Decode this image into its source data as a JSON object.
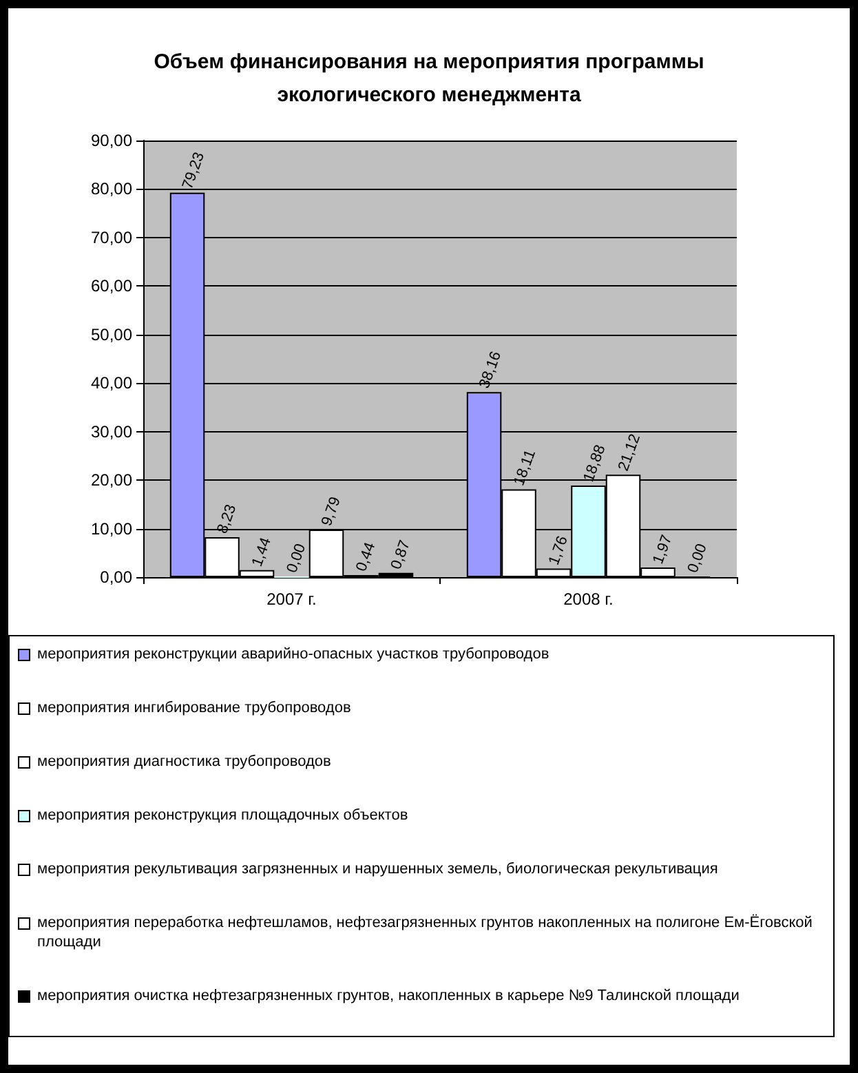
{
  "chart_data": {
    "type": "bar",
    "title": "Объем финансирования на мероприятия программы\nэкологического менеджмента",
    "categories": [
      "2007 г.",
      "2008 г."
    ],
    "series": [
      {
        "name": "мероприятия реконструкции аварийно-опасных участков трубопроводов",
        "color": "#9999ff",
        "values": [
          79.23,
          38.16
        ],
        "value_labels": [
          "79,23",
          "38,16"
        ]
      },
      {
        "name": "мероприятия ингибирование трубопроводов",
        "color": "#ffffff",
        "values": [
          8.23,
          18.11
        ],
        "value_labels": [
          "8,23",
          "18,11"
        ]
      },
      {
        "name": "мероприятия диагностика трубопроводов",
        "color": "#ffffff",
        "values": [
          1.44,
          1.76
        ],
        "value_labels": [
          "1,44",
          "1,76"
        ]
      },
      {
        "name": "мероприятия реконструкция  площадочных объектов",
        "color": "#ccffff",
        "values": [
          0.0,
          18.88
        ],
        "value_labels": [
          "0,00",
          "18,88"
        ]
      },
      {
        "name": "мероприятия рекультивация загрязненных и нарушенных земель, биологическая рекультивация",
        "color": "#ffffff",
        "values": [
          9.79,
          21.12
        ],
        "value_labels": [
          "9,79",
          "21,12"
        ]
      },
      {
        "name": "мероприятия переработка нефтешламов, нефтезагрязненных грунтов накопленных на полигоне Ем-Ёговской площади",
        "color": "#ffffff",
        "values": [
          0.44,
          1.97
        ],
        "value_labels": [
          "0,44",
          "1,97"
        ]
      },
      {
        "name": "мероприятия очистка нефтезагрязненных грунтов, накопленных в карьере №9 Талинской площади",
        "color": "#000000",
        "values": [
          0.87,
          0.0
        ],
        "value_labels": [
          "0,87",
          "0,00"
        ]
      }
    ],
    "ylim": [
      0,
      90
    ],
    "yticks": [
      {
        "value": 0,
        "label": "0,00"
      },
      {
        "value": 10,
        "label": "10,00"
      },
      {
        "value": 20,
        "label": "20,00"
      },
      {
        "value": 30,
        "label": "30,00"
      },
      {
        "value": 40,
        "label": "40,00"
      },
      {
        "value": 50,
        "label": "50,00"
      },
      {
        "value": 60,
        "label": "60,00"
      },
      {
        "value": 70,
        "label": "70,00"
      },
      {
        "value": 80,
        "label": "80,00"
      },
      {
        "value": 90,
        "label": "90,00"
      }
    ],
    "grid": "y",
    "legend": "bottom"
  }
}
